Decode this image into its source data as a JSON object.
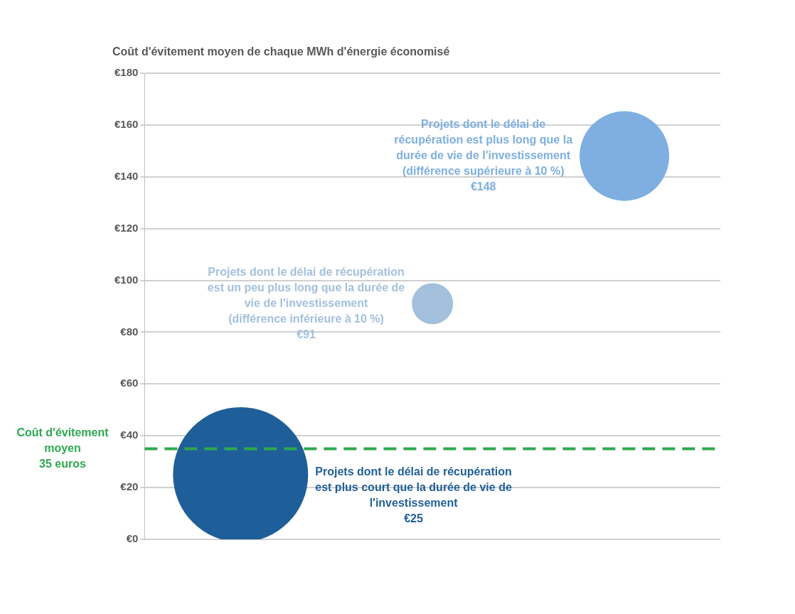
{
  "chart_data": {
    "type": "bubble",
    "title": "Coût d'évitement moyen de chaque MWh d'énergie économisé",
    "categories": [
      null,
      null,
      null
    ],
    "series": [
      {
        "colors": [
          "#1f5f99",
          "#a3c0dc",
          "#7eafe0"
        ],
        "values": [
          25,
          91,
          148
        ],
        "sizes": [
          1,
          0.093,
          0.44
        ]
      }
    ],
    "ylim": [
      0,
      180
    ],
    "yticks": [
      {
        "value": 0,
        "label": "€0"
      },
      {
        "value": 20,
        "label": "€20"
      },
      {
        "value": 40,
        "label": "€40"
      },
      {
        "value": 60,
        "label": "€60"
      },
      {
        "value": 80,
        "label": "€80"
      },
      {
        "value": 100,
        "label": "€100"
      },
      {
        "value": 120,
        "label": "€120"
      },
      {
        "value": 140,
        "label": "€140"
      },
      {
        "value": 160,
        "label": "€160"
      },
      {
        "value": 180,
        "label": "€180"
      }
    ],
    "grid": "y",
    "tick_labels": "y",
    "legend": false,
    "ref_lines": [
      {
        "axis": "y",
        "value": 35,
        "label": "Coût d'évitement\nmoyen\n35 euros",
        "color": "#2ea84f",
        "line_style": "dashed"
      }
    ],
    "annotations": [
      "Projets dont le délai de récupération\nest plus court que la durée de vie de\nl'investissement\n€25",
      "Projets dont le délai de récupération\nest un peu plus long que la durée de\nvie de l'investissement\n(différence inférieure à 10 %)\n€91",
      "Projets dont le délai de\nrécupération est plus long que la\ndurée de vie de l'investissement\n(différence supérieure à 10 %)\n€148"
    ]
  }
}
